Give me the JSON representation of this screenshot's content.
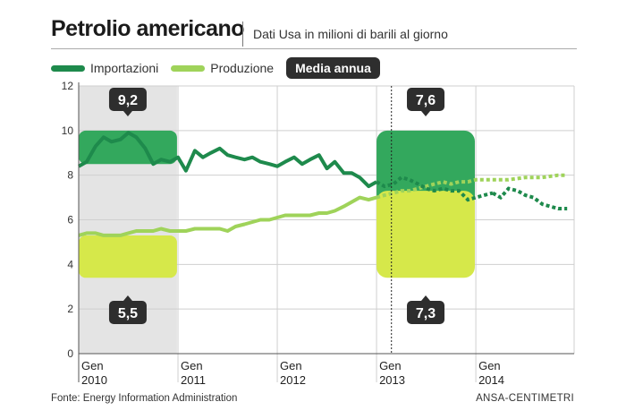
{
  "header": {
    "title": "Petrolio americano",
    "subtitle": "Dati Usa in milioni di barili al giorno"
  },
  "legend": {
    "items": [
      {
        "label": "Importazioni",
        "color": "#1e8a4c"
      },
      {
        "label": "Produzione",
        "color": "#9fd35a"
      }
    ],
    "badge": "Media annua"
  },
  "footer": {
    "source": "Fonte: Energy Information Administration",
    "credit": "ANSA-CENTIMETRI"
  },
  "chart_data": {
    "type": "line",
    "title": "Petrolio americano",
    "subtitle": "Dati Usa in milioni di barili al giorno",
    "xlabel": "",
    "ylabel": "",
    "x_range": [
      2010.0,
      2014.99
    ],
    "ylim": [
      0,
      12
    ],
    "y_ticks": [
      0,
      2,
      4,
      6,
      8,
      10,
      12
    ],
    "x_ticks": [
      {
        "value": 2010.0,
        "line1": "Gen",
        "line2": "2010"
      },
      {
        "value": 2011.0,
        "line1": "Gen",
        "line2": "2011"
      },
      {
        "value": 2012.0,
        "line1": "Gen",
        "line2": "2012"
      },
      {
        "value": 2013.0,
        "line1": "Gen",
        "line2": "2013"
      },
      {
        "value": 2014.0,
        "line1": "Gen",
        "line2": "2014"
      }
    ],
    "grid": true,
    "legend_position": "top-left",
    "series": [
      {
        "name": "Importazioni",
        "color": "#1e8a4c",
        "points": [
          [
            2010.0,
            8.4
          ],
          [
            2010.08,
            8.6
          ],
          [
            2010.17,
            9.3
          ],
          [
            2010.25,
            9.7
          ],
          [
            2010.33,
            9.5
          ],
          [
            2010.42,
            9.6
          ],
          [
            2010.5,
            9.9
          ],
          [
            2010.58,
            9.7
          ],
          [
            2010.67,
            9.2
          ],
          [
            2010.75,
            8.5
          ],
          [
            2010.83,
            8.7
          ],
          [
            2010.92,
            8.6
          ],
          [
            2011.0,
            8.8
          ],
          [
            2011.08,
            8.2
          ],
          [
            2011.17,
            9.1
          ],
          [
            2011.25,
            8.8
          ],
          [
            2011.33,
            9.0
          ],
          [
            2011.42,
            9.2
          ],
          [
            2011.5,
            8.9
          ],
          [
            2011.58,
            8.8
          ],
          [
            2011.67,
            8.7
          ],
          [
            2011.75,
            8.8
          ],
          [
            2011.83,
            8.6
          ],
          [
            2011.92,
            8.5
          ],
          [
            2012.0,
            8.4
          ],
          [
            2012.08,
            8.6
          ],
          [
            2012.17,
            8.8
          ],
          [
            2012.25,
            8.5
          ],
          [
            2012.33,
            8.7
          ],
          [
            2012.42,
            8.9
          ],
          [
            2012.5,
            8.3
          ],
          [
            2012.58,
            8.6
          ],
          [
            2012.67,
            8.1
          ],
          [
            2012.75,
            8.1
          ],
          [
            2012.83,
            7.9
          ],
          [
            2012.92,
            7.5
          ],
          [
            2013.0,
            7.7
          ]
        ],
        "points_dashed": [
          [
            2013.0,
            7.7
          ],
          [
            2013.08,
            7.5
          ],
          [
            2013.17,
            7.6
          ],
          [
            2013.25,
            7.9
          ],
          [
            2013.33,
            7.8
          ],
          [
            2013.42,
            7.6
          ],
          [
            2013.5,
            7.4
          ],
          [
            2013.58,
            7.3
          ],
          [
            2013.67,
            7.4
          ],
          [
            2013.75,
            7.3
          ],
          [
            2013.83,
            7.3
          ],
          [
            2013.92,
            6.9
          ],
          [
            2014.0,
            7.0
          ],
          [
            2014.08,
            7.1
          ],
          [
            2014.17,
            7.2
          ]
        ],
        "points_tail": [
          [
            2014.17,
            7.2
          ],
          [
            2014.25,
            7.0
          ],
          [
            2014.33,
            7.4
          ],
          [
            2014.42,
            7.3
          ],
          [
            2014.5,
            7.1
          ],
          [
            2014.58,
            7.0
          ],
          [
            2014.67,
            6.7
          ],
          [
            2014.75,
            6.6
          ],
          [
            2014.83,
            6.5
          ],
          [
            2014.92,
            6.5
          ]
        ]
      },
      {
        "name": "Produzione",
        "color": "#9fd35a",
        "points": [
          [
            2010.0,
            5.3
          ],
          [
            2010.08,
            5.4
          ],
          [
            2010.17,
            5.4
          ],
          [
            2010.25,
            5.3
          ],
          [
            2010.33,
            5.3
          ],
          [
            2010.42,
            5.3
          ],
          [
            2010.5,
            5.4
          ],
          [
            2010.58,
            5.5
          ],
          [
            2010.67,
            5.5
          ],
          [
            2010.75,
            5.5
          ],
          [
            2010.83,
            5.6
          ],
          [
            2010.92,
            5.5
          ],
          [
            2011.0,
            5.5
          ],
          [
            2011.08,
            5.5
          ],
          [
            2011.17,
            5.6
          ],
          [
            2011.25,
            5.6
          ],
          [
            2011.33,
            5.6
          ],
          [
            2011.42,
            5.6
          ],
          [
            2011.5,
            5.5
          ],
          [
            2011.58,
            5.7
          ],
          [
            2011.67,
            5.8
          ],
          [
            2011.75,
            5.9
          ],
          [
            2011.83,
            6.0
          ],
          [
            2011.92,
            6.0
          ],
          [
            2012.0,
            6.1
          ],
          [
            2012.08,
            6.2
          ],
          [
            2012.17,
            6.2
          ],
          [
            2012.25,
            6.2
          ],
          [
            2012.33,
            6.2
          ],
          [
            2012.42,
            6.3
          ],
          [
            2012.5,
            6.3
          ],
          [
            2012.58,
            6.4
          ],
          [
            2012.67,
            6.6
          ],
          [
            2012.75,
            6.8
          ],
          [
            2012.83,
            7.0
          ],
          [
            2012.92,
            6.9
          ],
          [
            2013.0,
            7.0
          ]
        ],
        "points_dashed": [
          [
            2013.0,
            7.0
          ],
          [
            2013.08,
            7.1
          ],
          [
            2013.17,
            7.2
          ],
          [
            2013.25,
            7.3
          ],
          [
            2013.33,
            7.3
          ],
          [
            2013.42,
            7.4
          ],
          [
            2013.5,
            7.5
          ],
          [
            2013.58,
            7.6
          ],
          [
            2013.67,
            7.7
          ],
          [
            2013.75,
            7.6
          ],
          [
            2013.83,
            7.7
          ],
          [
            2013.92,
            7.7
          ],
          [
            2014.0,
            7.8
          ],
          [
            2014.17,
            7.8
          ],
          [
            2014.33,
            7.8
          ],
          [
            2014.5,
            7.9
          ],
          [
            2014.67,
            7.9
          ],
          [
            2014.83,
            8.0
          ],
          [
            2014.92,
            8.0
          ]
        ]
      }
    ],
    "annotations": {
      "vline_x": 2013.15,
      "shaded_period": [
        2010.0,
        2010.99
      ],
      "averages": [
        {
          "period": [
            2010.0,
            2010.99
          ],
          "import_avg": "9,2",
          "prod_avg": "5,5",
          "import_value": 9.2,
          "prod_value": 5.5
        },
        {
          "period": [
            2013.0,
            2013.99
          ],
          "import_avg": "7,6",
          "prod_avg": "7,3",
          "import_value": 7.6,
          "prod_value": 7.3
        }
      ]
    },
    "colors": {
      "import_box": "#33a85d",
      "prod_box": "#d6e84a",
      "dark_label": "#2e2e2e",
      "shade": "#e4e4e4"
    }
  }
}
